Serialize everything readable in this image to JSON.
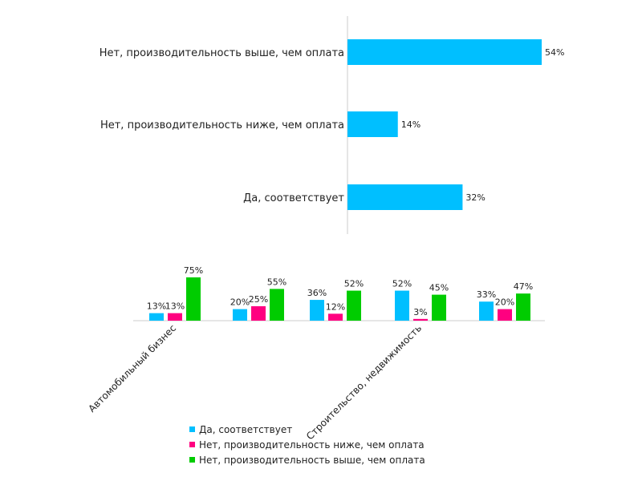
{
  "colors": {
    "series1": "#00bfff",
    "series2": "#ff0080",
    "series3": "#00cc00",
    "axis": "#cccccc",
    "text": "#222222"
  },
  "chart_data": [
    {
      "type": "bar",
      "orientation": "horizontal",
      "categories": [
        "Нет, производительность выше, чем оплата",
        "Нет, производительность ниже, чем оплата",
        "Да, соответствует"
      ],
      "values": [
        54,
        14,
        32
      ],
      "value_labels": [
        "54%",
        "14%",
        "32%"
      ],
      "unit": "%",
      "xlim": [
        0,
        60
      ],
      "grid": false
    },
    {
      "type": "bar",
      "orientation": "vertical",
      "categories": [
        "Автомобильный бизнес",
        "",
        "",
        "Строительство, недвижимость",
        ""
      ],
      "series": [
        {
          "name": "Да, соответствует",
          "values": [
            13,
            20,
            36,
            52,
            33
          ],
          "labels": [
            "13%",
            "20%",
            "36%",
            "52%",
            "33%"
          ]
        },
        {
          "name": "Нет, производительность ниже, чем оплата",
          "values": [
            13,
            25,
            12,
            3,
            20
          ],
          "labels": [
            "13%",
            "25%",
            "12%",
            "3%",
            "20%"
          ]
        },
        {
          "name": "Нет, производительность выше, чем оплата",
          "values": [
            75,
            55,
            52,
            45,
            47
          ],
          "labels": [
            "75%",
            "55%",
            "52%",
            "45%",
            "47%"
          ]
        }
      ],
      "unit": "%",
      "ylim": [
        0,
        80
      ],
      "legend": "bottom",
      "grid": false
    }
  ]
}
